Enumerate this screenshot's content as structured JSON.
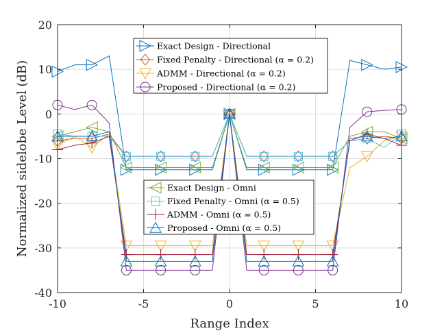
{
  "chart_data": {
    "type": "line",
    "xlabel": "Range Index",
    "ylabel": "Normalized sidelobe Level (dB)",
    "xlim": [
      -10,
      10
    ],
    "ylim": [
      -40,
      20
    ],
    "xticks": [
      -10,
      -5,
      0,
      5,
      10
    ],
    "xtick_labels": [
      "-10",
      "-5",
      "0",
      "5",
      "10"
    ],
    "yticks": [
      -40,
      -30,
      -20,
      -10,
      0,
      10,
      20
    ],
    "ytick_labels": [
      "-40",
      "-30",
      "-20",
      "-10",
      "0",
      "10",
      "20"
    ],
    "grid": true,
    "legends": [
      {
        "position": "top-center",
        "entries": [
          {
            "series": 0,
            "text": "Exact Design - Directional"
          },
          {
            "series": 1,
            "text": "Fixed Penalty - Directional (α = 0.2)"
          },
          {
            "series": 2,
            "text": "ADMM - Directional (α = 0.2)"
          },
          {
            "series": 3,
            "text": "Proposed - Directional (α = 0.2)"
          }
        ]
      },
      {
        "position": "center",
        "entries": [
          {
            "series": 4,
            "text": "Exact Design - Omni"
          },
          {
            "series": 5,
            "text": "Fixed Penalty - Omni (α = 0.5)"
          },
          {
            "series": 6,
            "text": "ADMM - Omni (α = 0.5)"
          },
          {
            "series": 7,
            "text": "Proposed - Omni (α = 0.5)"
          }
        ]
      }
    ],
    "series": [
      {
        "name": "Exact Design - Directional",
        "color": "#0072BD",
        "marker": "triangle-right",
        "x": [
          -10,
          -9,
          -8,
          -7,
          -6,
          -5,
          -4,
          -3,
          -2,
          -1,
          0,
          1,
          2,
          3,
          4,
          5,
          6,
          7,
          8,
          9,
          10
        ],
        "y": [
          9.5,
          11,
          11,
          13,
          -12.5,
          -12.5,
          -12.5,
          -12.5,
          -12.5,
          -12.5,
          0,
          -12.5,
          -12.5,
          -12.5,
          -12.5,
          -12.5,
          -12.5,
          12,
          11,
          10,
          10.5
        ],
        "marker_x": [
          -10,
          -8,
          -6,
          -4,
          -2,
          0,
          2,
          4,
          6,
          8,
          10
        ],
        "marker_y": [
          9.5,
          11,
          -12.5,
          -12.5,
          -12.5,
          0,
          -12.5,
          -12.5,
          -12.5,
          11,
          10.5
        ]
      },
      {
        "name": "Fixed Penalty - Directional (α = 0.2)",
        "color": "#D95319",
        "marker": "diamond",
        "x": [
          -10,
          -9,
          -8,
          -7,
          -6,
          -5,
          -4,
          -3,
          -2,
          -1,
          0,
          1,
          2,
          3,
          4,
          5,
          6,
          7,
          8,
          9,
          10
        ],
        "y": [
          -6,
          -5.5,
          -5.5,
          -4.5,
          -9.5,
          -9.5,
          -9.5,
          -9.5,
          -9.5,
          -9.5,
          0,
          -9.5,
          -9.5,
          -9.5,
          -9.5,
          -9.5,
          -9.5,
          -6,
          -5.5,
          -5,
          -5.5
        ],
        "marker_x": [
          -10,
          -8,
          -6,
          -4,
          -2,
          0,
          2,
          4,
          6,
          8,
          10
        ],
        "marker_y": [
          -6,
          -5.5,
          -9.5,
          -9.5,
          -9.5,
          0,
          -9.5,
          -9.5,
          -9.5,
          -5.5,
          -5.5
        ]
      },
      {
        "name": "ADMM - Directional (α = 0.2)",
        "color": "#EDB120",
        "marker": "triangle-down",
        "x": [
          -10,
          -9,
          -8,
          -7,
          -6,
          -5,
          -4,
          -3,
          -2,
          -1,
          0,
          1,
          2,
          3,
          4,
          5,
          6,
          7,
          8,
          9,
          10
        ],
        "y": [
          -7,
          -5,
          -7.5,
          -4.5,
          -29.5,
          -29.5,
          -29.5,
          -29.5,
          -29.5,
          -29.5,
          0,
          -29.5,
          -29.5,
          -29.5,
          -29.5,
          -29.5,
          -29.5,
          -12,
          -9.5,
          -6,
          -5
        ],
        "marker_x": [
          -10,
          -8,
          -6,
          -4,
          -2,
          0,
          2,
          4,
          6,
          8,
          10
        ],
        "marker_y": [
          -7,
          -7.5,
          -29.5,
          -29.5,
          -29.5,
          0,
          -29.5,
          -29.5,
          -29.5,
          -9.5,
          -5
        ]
      },
      {
        "name": "Proposed - Directional (α = 0.2)",
        "color": "#7E2F8E",
        "marker": "circle",
        "x": [
          -10,
          -9,
          -8,
          -7,
          -6,
          -5,
          -4,
          -3,
          -2,
          -1,
          0,
          1,
          2,
          3,
          4,
          5,
          6,
          7,
          8,
          9,
          10
        ],
        "y": [
          2,
          1,
          2,
          -2,
          -35,
          -35,
          -35,
          -35,
          -35,
          -35,
          0,
          -35,
          -35,
          -35,
          -35,
          -35,
          -35,
          -3,
          0.5,
          0.8,
          1
        ],
        "marker_x": [
          -10,
          -8,
          -6,
          -4,
          -2,
          0,
          2,
          4,
          6,
          8,
          10
        ],
        "marker_y": [
          2,
          2,
          -35,
          -35,
          -35,
          0,
          -35,
          -35,
          -35,
          0.5,
          1
        ]
      },
      {
        "name": "Exact Design - Omni",
        "color": "#77AC30",
        "marker": "triangle-left",
        "x": [
          -10,
          -9,
          -8,
          -7,
          -6,
          -5,
          -4,
          -3,
          -2,
          -1,
          0,
          1,
          2,
          3,
          4,
          5,
          6,
          7,
          8,
          9,
          10
        ],
        "y": [
          -5,
          -4,
          -3,
          -4,
          -12,
          -12,
          -12,
          -12,
          -12,
          -12,
          0,
          -12,
          -12,
          -12,
          -12,
          -12,
          -12,
          -5,
          -4,
          -4,
          -5.5
        ],
        "marker_x": [
          -10,
          -8,
          -6,
          -4,
          -2,
          0,
          2,
          4,
          6,
          8,
          10
        ],
        "marker_y": [
          -5,
          -3,
          -12,
          -12,
          -12,
          0,
          -12,
          -12,
          -12,
          -4,
          -5.5
        ]
      },
      {
        "name": "Fixed Penalty - Omni (α = 0.5)",
        "color": "#4DBEEE",
        "marker": "square",
        "x": [
          -10,
          -9,
          -8,
          -7,
          -6,
          -5,
          -4,
          -3,
          -2,
          -1,
          0,
          1,
          2,
          3,
          4,
          5,
          6,
          7,
          8,
          9,
          10
        ],
        "y": [
          -4.5,
          -5,
          -5,
          -5,
          -9.5,
          -9.5,
          -9.5,
          -9.5,
          -9.5,
          -9.5,
          0,
          -9.5,
          -9.5,
          -9.5,
          -9.5,
          -9.5,
          -9.5,
          -6,
          -5.5,
          -7.5,
          -4.5
        ],
        "marker_x": [
          -10,
          -8,
          -6,
          -4,
          -2,
          0,
          2,
          4,
          6,
          8,
          10
        ],
        "marker_y": [
          -4.5,
          -5,
          -9.5,
          -9.5,
          -9.5,
          0,
          -9.5,
          -9.5,
          -9.5,
          -5.5,
          -4.5
        ]
      },
      {
        "name": "ADMM - Omni (α = 0.5)",
        "color": "#A2142F",
        "marker": "plus",
        "x": [
          -10,
          -9,
          -8,
          -7,
          -6,
          -5,
          -4,
          -3,
          -2,
          -1,
          0,
          1,
          2,
          3,
          4,
          5,
          6,
          7,
          8,
          9,
          10
        ],
        "y": [
          -8,
          -7,
          -6.5,
          -5,
          -31.5,
          -31.5,
          -31.5,
          -31.5,
          -31.5,
          -31.5,
          0,
          -31.5,
          -31.5,
          -31.5,
          -31.5,
          -31.5,
          -31.5,
          -6,
          -4.5,
          -5.5,
          -7
        ],
        "marker_x": [
          -10,
          -8,
          -6,
          -4,
          -2,
          0,
          2,
          4,
          6,
          8,
          10
        ],
        "marker_y": [
          -8,
          -6.5,
          -31.5,
          -31.5,
          -31.5,
          0,
          -31.5,
          -31.5,
          -31.5,
          -4.5,
          -7
        ]
      },
      {
        "name": "Proposed - Omni (α = 0.5)",
        "color": "#0072BD",
        "marker": "triangle-up",
        "x": [
          -10,
          -9,
          -8,
          -7,
          -6,
          -5,
          -4,
          -3,
          -2,
          -1,
          0,
          1,
          2,
          3,
          4,
          5,
          6,
          7,
          8,
          9,
          10
        ],
        "y": [
          -5,
          -5,
          -5,
          -4,
          -33,
          -33,
          -33,
          -33,
          -33,
          -33,
          0,
          -33,
          -33,
          -33,
          -33,
          -33,
          -33,
          -5.5,
          -5,
          -5.5,
          -5
        ],
        "marker_x": [
          -10,
          -8,
          -6,
          -4,
          -2,
          0,
          2,
          4,
          6,
          8,
          10
        ],
        "marker_y": [
          -5,
          -5,
          -33,
          -33,
          -33,
          0,
          -33,
          -33,
          -33,
          -5,
          -5
        ]
      }
    ]
  }
}
